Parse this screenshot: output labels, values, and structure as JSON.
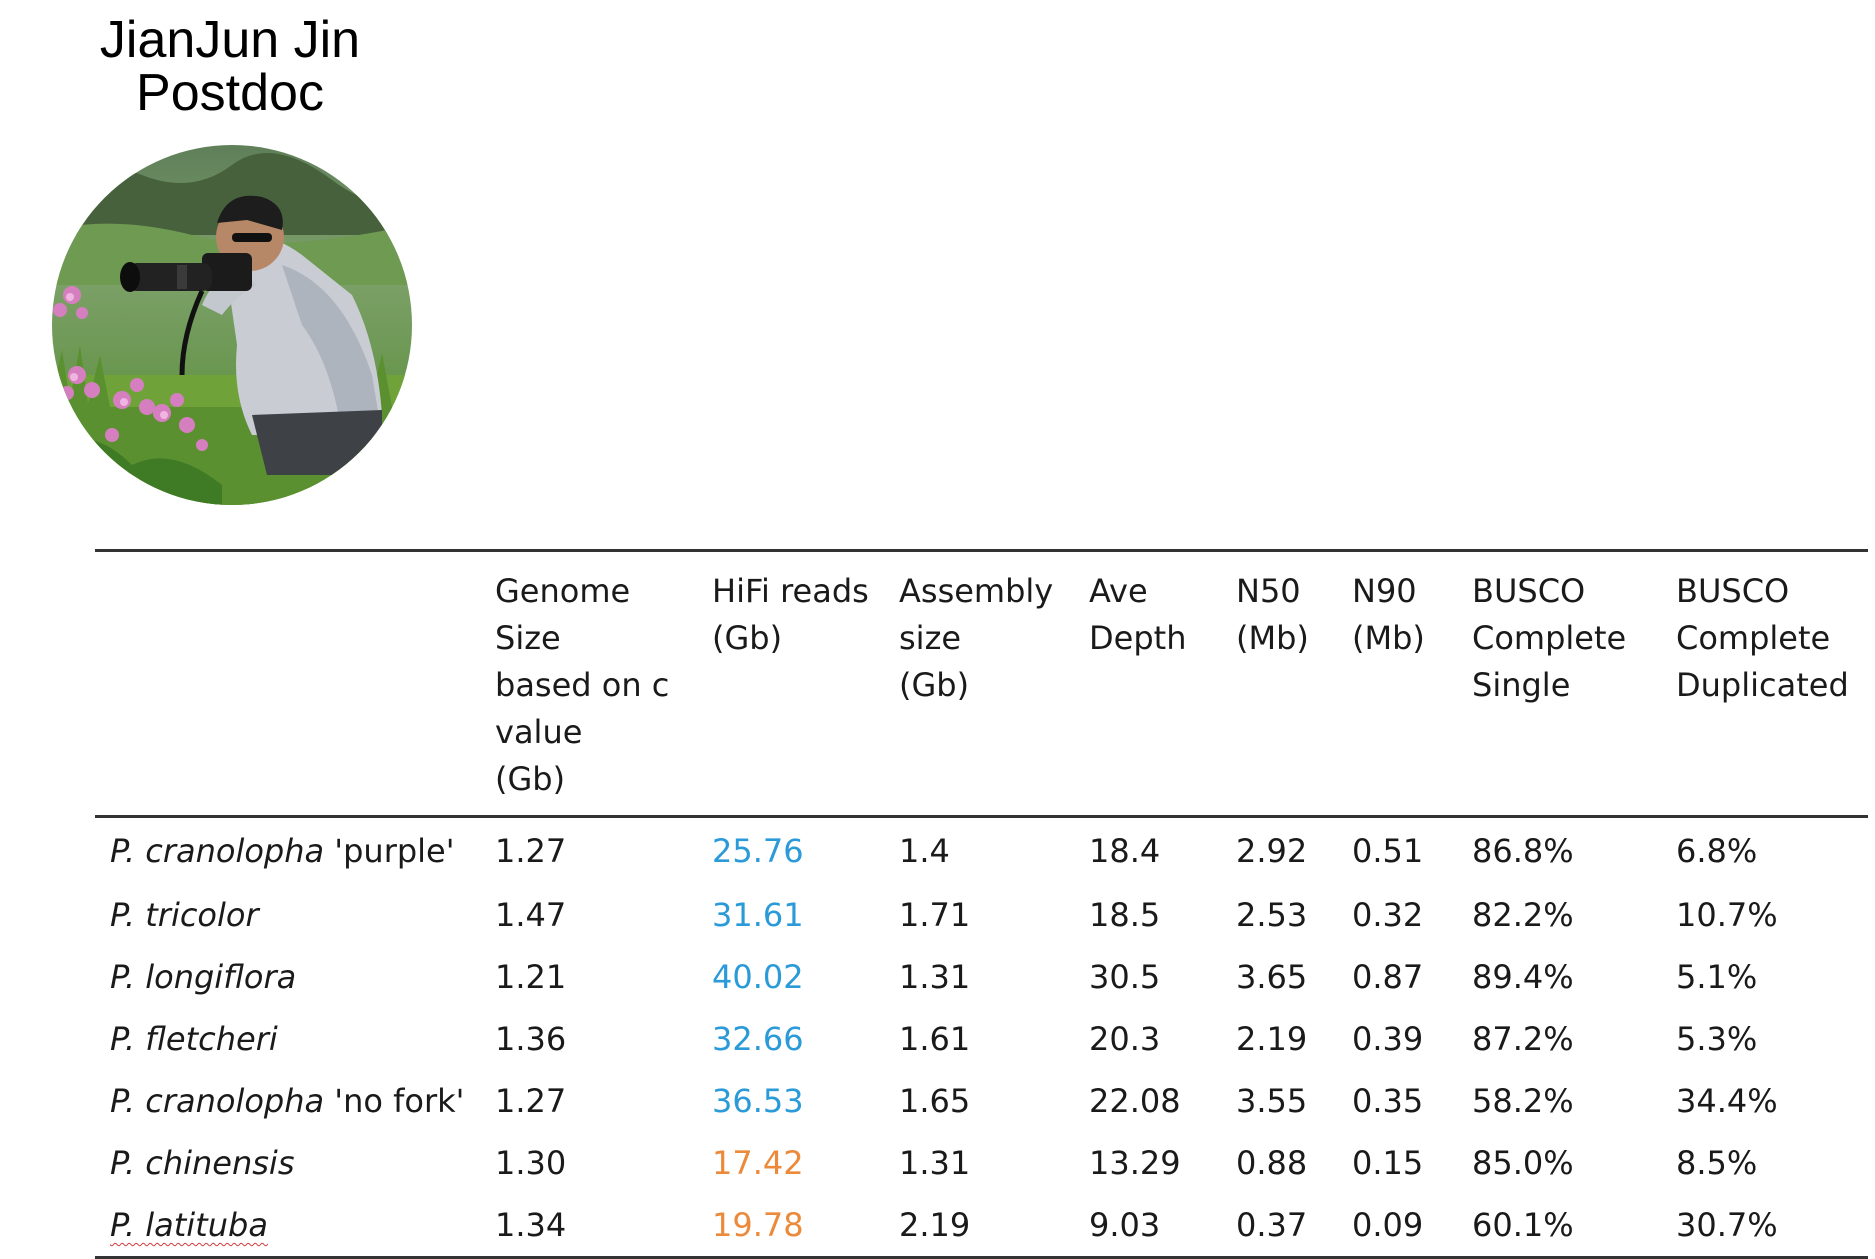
{
  "person": {
    "name": "JianJun Jin",
    "role": "Postdoc"
  },
  "colors": {
    "hifi_high": "#2b9ad8",
    "hifi_low": "#ec8a3c"
  },
  "table": {
    "headers": [
      {
        "lines": []
      },
      {
        "lines": [
          "Genome",
          "Size",
          "based on c",
          "value",
          "(Gb)"
        ]
      },
      {
        "lines": [
          "HiFi reads",
          "(Gb)"
        ]
      },
      {
        "lines": [
          "Assembly",
          "size",
          "(Gb)"
        ]
      },
      {
        "lines": [
          "Ave",
          "Depth"
        ]
      },
      {
        "lines": [
          "N50",
          "(Mb)"
        ]
      },
      {
        "lines": [
          "N90",
          "(Mb)"
        ]
      },
      {
        "lines": [
          "BUSCO",
          "Complete",
          "Single"
        ]
      },
      {
        "lines": [
          "BUSCO",
          "Complete",
          "Duplicated"
        ]
      }
    ],
    "rows": [
      {
        "species": "P. cranolopha",
        "suffix": " 'purple'",
        "genome_size": "1.27",
        "hifi": "25.76",
        "hifi_color": "blue",
        "assembly": "1.4",
        "depth": "18.4",
        "n50": "2.92",
        "n90": "0.51",
        "busco_single": "86.8%",
        "busco_dup": "6.8%"
      },
      {
        "species": "P. tricolor",
        "suffix": "",
        "genome_size": "1.47",
        "hifi": "31.61",
        "hifi_color": "blue",
        "assembly": "1.71",
        "depth": "18.5",
        "n50": "2.53",
        "n90": "0.32",
        "busco_single": "82.2%",
        "busco_dup": "10.7%"
      },
      {
        "species": "P. longiflora",
        "suffix": "",
        "genome_size": "1.21",
        "hifi": "40.02",
        "hifi_color": "blue",
        "assembly": "1.31",
        "depth": "30.5",
        "n50": "3.65",
        "n90": "0.87",
        "busco_single": "89.4%",
        "busco_dup": "5.1%"
      },
      {
        "species": "P. fletcheri",
        "suffix": "",
        "genome_size": "1.36",
        "hifi": "32.66",
        "hifi_color": "blue",
        "assembly": "1.61",
        "depth": "20.3",
        "n50": "2.19",
        "n90": "0.39",
        "busco_single": "87.2%",
        "busco_dup": "5.3%"
      },
      {
        "species": "P. cranolopha",
        "suffix": " 'no fork'",
        "genome_size": "1.27",
        "hifi": "36.53",
        "hifi_color": "blue",
        "assembly": "1.65",
        "depth": "22.08",
        "n50": "3.55",
        "n90": "0.35",
        "busco_single": "58.2%",
        "busco_dup": "34.4%"
      },
      {
        "species": "P. chinensis",
        "suffix": "",
        "genome_size": "1.30",
        "hifi": "17.42",
        "hifi_color": "orange",
        "assembly": "1.31",
        "depth": "13.29",
        "n50": "0.88",
        "n90": "0.15",
        "busco_single": "85.0%",
        "busco_dup": "8.5%"
      },
      {
        "species": "P. latituba",
        "suffix": "",
        "genome_size": "1.34",
        "hifi": "19.78",
        "hifi_color": "orange",
        "assembly": "2.19",
        "depth": "9.03",
        "n50": "0.37",
        "n90": "0.09",
        "busco_single": "60.1%",
        "busco_dup": "30.7%"
      }
    ]
  }
}
